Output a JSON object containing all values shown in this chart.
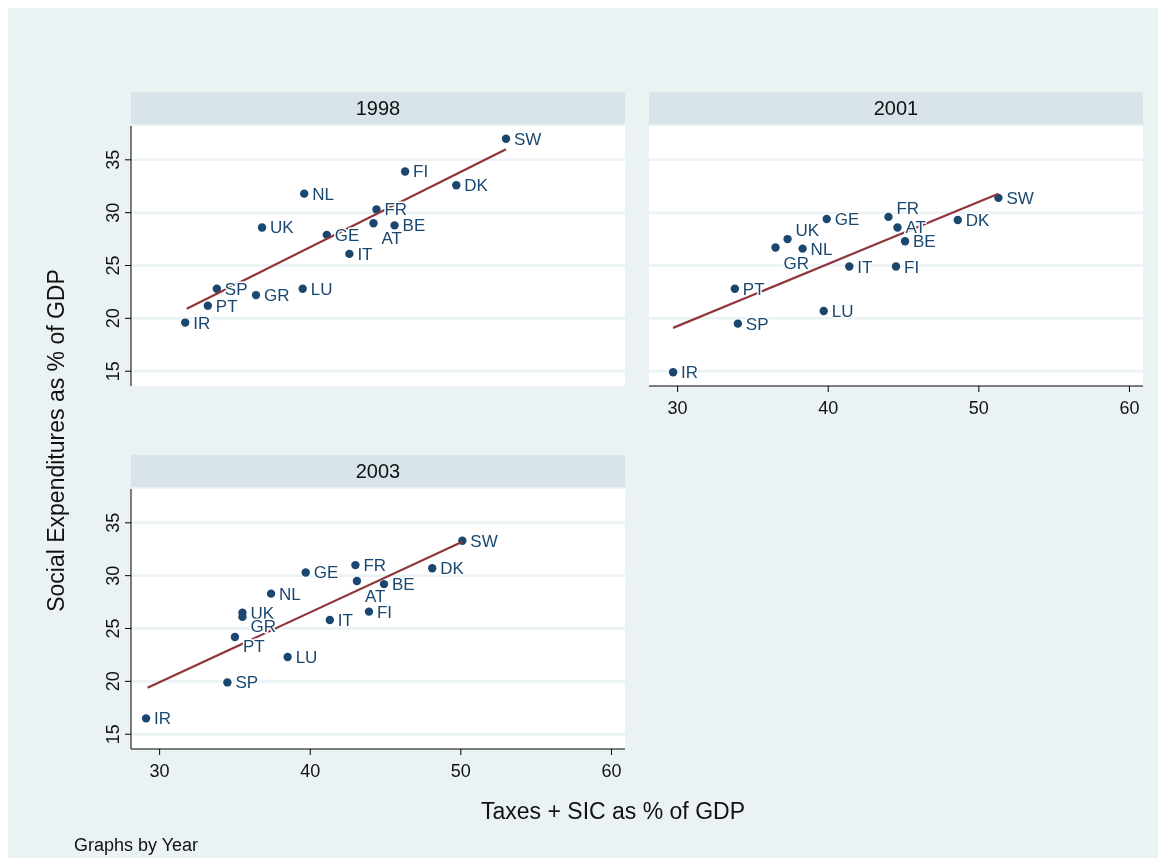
{
  "chart_data": [
    {
      "type": "scatter",
      "title": "1998",
      "ylabel": "Social Expenditures as % of GDP",
      "xlim": [
        28.1,
        60.9
      ],
      "ylim": [
        13.6,
        38.2
      ],
      "yticks": [
        15,
        20,
        25,
        30,
        35
      ],
      "tick_labels": "y",
      "grid": "y",
      "marker": "circle",
      "series": [
        {
          "type": "scatter",
          "color": "#1a476f",
          "x": [
            53.0,
            46.3,
            49.7,
            39.6,
            44.4,
            44.2,
            45.6,
            36.8,
            41.1,
            42.6,
            33.8,
            36.4,
            39.5,
            33.2,
            31.7
          ],
          "values": [
            37.0,
            33.9,
            32.6,
            31.8,
            30.3,
            29.0,
            28.8,
            28.6,
            27.9,
            26.1,
            22.8,
            22.2,
            22.8,
            21.2,
            19.6
          ],
          "value_labels": [
            "SW",
            "FI",
            "DK",
            "NL",
            "FR",
            "AT",
            "BE",
            "UK",
            "GE",
            "IT",
            "SP",
            "GR",
            "LU",
            "PT",
            "IR"
          ]
        },
        {
          "type": "line",
          "color": "#90353b",
          "marker": "none",
          "x": [
            31.8,
            53.0
          ],
          "values": [
            20.9,
            36.0
          ]
        }
      ]
    },
    {
      "type": "scatter",
      "title": "2001",
      "xlim": [
        28.1,
        60.9
      ],
      "ylim": [
        13.6,
        38.2
      ],
      "xticks": [
        30,
        40,
        50,
        60
      ],
      "yticks": [
        15,
        20,
        25,
        30,
        35
      ],
      "tick_labels": "x",
      "grid": "y",
      "marker": "circle",
      "series": [
        {
          "type": "scatter",
          "color": "#1a476f",
          "x": [
            51.3,
            39.9,
            44.0,
            44.6,
            48.6,
            45.1,
            37.3,
            36.5,
            38.3,
            41.4,
            44.5,
            33.8,
            39.7,
            34.0,
            29.7
          ],
          "values": [
            31.4,
            29.4,
            29.6,
            28.6,
            29.3,
            27.3,
            27.5,
            26.7,
            26.6,
            24.9,
            24.9,
            22.8,
            20.7,
            19.5,
            14.9
          ],
          "value_labels": [
            "SW",
            "GE",
            "FR",
            "AT",
            "DK",
            "BE",
            "UK",
            "GR",
            "NL",
            "IT",
            "FI",
            "PT",
            "LU",
            "SP",
            "IR"
          ]
        },
        {
          "type": "line",
          "color": "#90353b",
          "marker": "none",
          "x": [
            29.7,
            51.3
          ],
          "values": [
            19.1,
            31.8
          ]
        }
      ]
    },
    {
      "type": "scatter",
      "title": "2003",
      "xlabel": "Taxes + SIC as % of GDP",
      "annotations": [
        "Graphs by Year"
      ],
      "xlim": [
        28.1,
        60.9
      ],
      "ylim": [
        13.6,
        38.2
      ],
      "xticks": [
        30,
        40,
        50,
        60
      ],
      "yticks": [
        15,
        20,
        25,
        30,
        35
      ],
      "grid": "y",
      "marker": "circle",
      "series": [
        {
          "type": "scatter",
          "color": "#1a476f",
          "x": [
            50.1,
            43.0,
            39.7,
            48.1,
            43.1,
            44.9,
            37.4,
            35.5,
            35.5,
            43.9,
            41.3,
            35.0,
            38.5,
            34.5,
            29.1
          ],
          "values": [
            33.3,
            31.0,
            30.3,
            30.7,
            29.5,
            29.2,
            28.3,
            26.5,
            26.1,
            26.6,
            25.8,
            24.2,
            22.3,
            19.9,
            16.5
          ],
          "value_labels": [
            "SW",
            "FR",
            "GE",
            "DK",
            "AT",
            "BE",
            "NL",
            "UK",
            "GR",
            "FI",
            "IT",
            "PT",
            "LU",
            "SP",
            "IR"
          ]
        },
        {
          "type": "line",
          "color": "#90353b",
          "marker": "none",
          "x": [
            29.2,
            50.1
          ],
          "values": [
            19.4,
            33.2
          ]
        }
      ]
    }
  ]
}
